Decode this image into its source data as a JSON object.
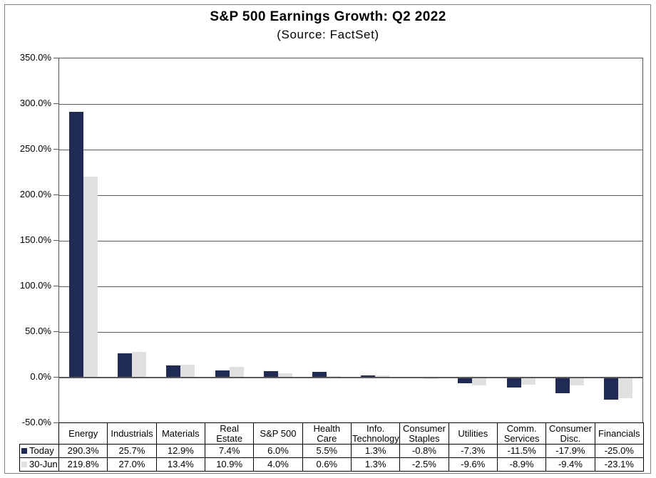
{
  "chart_data": {
    "type": "bar",
    "title": "S&P 500 Earnings Growth: Q2 2022",
    "subtitle": "(Source: FactSet)",
    "categories": [
      "Energy",
      "Industrials",
      "Materials",
      "Real Estate",
      "S&P 500",
      "Health Care",
      "Info. Technology",
      "Consumer Staples",
      "Utilities",
      "Comm. Services",
      "Consumer Disc.",
      "Financials"
    ],
    "series": [
      {
        "name": "Today",
        "color": "#1F2B52",
        "values": [
          290.3,
          25.7,
          12.9,
          7.4,
          6.0,
          5.5,
          1.3,
          -0.8,
          -7.3,
          -11.5,
          -17.9,
          -25.0
        ]
      },
      {
        "name": "30-Jun",
        "color": "#E0E0E0",
        "values": [
          219.8,
          27.0,
          13.4,
          10.9,
          4.0,
          0.6,
          1.3,
          -2.5,
          -9.6,
          -8.9,
          -9.4,
          -23.1
        ]
      }
    ],
    "ylim": [
      -50,
      350
    ],
    "ytick_step": 50,
    "yticks": [
      "350.0%",
      "300.0%",
      "250.0%",
      "200.0%",
      "150.0%",
      "100.0%",
      "50.0%",
      "0.0%",
      "-50.0%"
    ],
    "value_format": "0.0%",
    "grid": "horizontal",
    "legend_position": "data-table-left",
    "data_table": true
  },
  "colors": {
    "today_bar": "#1F2B52",
    "jun30_bar": "#E0E0E0",
    "gridline": "#595959",
    "zero_line": "#595959",
    "table_border": "#000000",
    "frame_border": "#808080",
    "background": "#FFFFFF"
  }
}
